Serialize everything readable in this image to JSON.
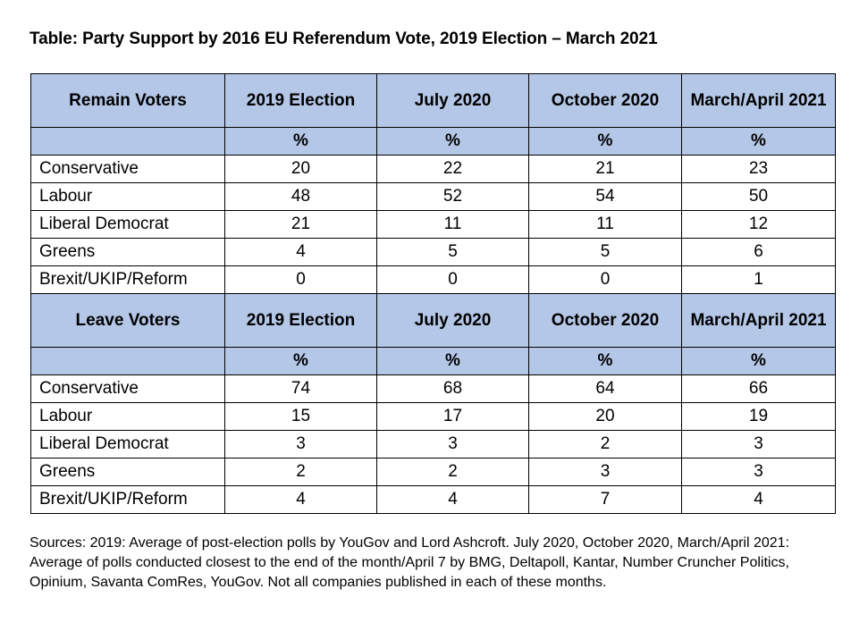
{
  "title": "Table: Party Support by 2016 EU Referendum Vote, 2019 Election – March 2021",
  "sections": [
    {
      "group_label": "Remain Voters",
      "columns": [
        "2019 Election",
        "July 2020",
        "October 2020",
        "March/April 2021"
      ],
      "unit_row": [
        "%",
        "%",
        "%",
        "%"
      ],
      "rows": [
        {
          "party": "Conservative",
          "values": [
            "20",
            "22",
            "21",
            "23"
          ]
        },
        {
          "party": "Labour",
          "values": [
            "48",
            "52",
            "54",
            "50"
          ]
        },
        {
          "party": "Liberal Democrat",
          "values": [
            "21",
            "11",
            "11",
            "12"
          ]
        },
        {
          "party": "Greens",
          "values": [
            "4",
            "5",
            "5",
            "6"
          ]
        },
        {
          "party": "Brexit/UKIP/Reform",
          "values": [
            "0",
            "0",
            "0",
            "1"
          ]
        }
      ]
    },
    {
      "group_label": "Leave Voters",
      "columns": [
        "2019 Election",
        "July 2020",
        "October 2020",
        "March/April 2021"
      ],
      "unit_row": [
        "%",
        "%",
        "%",
        "%"
      ],
      "rows": [
        {
          "party": "Conservative",
          "values": [
            "74",
            "68",
            "64",
            "66"
          ]
        },
        {
          "party": "Labour",
          "values": [
            "15",
            "17",
            "20",
            "19"
          ]
        },
        {
          "party": "Liberal Democrat",
          "values": [
            "3",
            "3",
            "2",
            "3"
          ]
        },
        {
          "party": "Greens",
          "values": [
            "2",
            "2",
            "3",
            "3"
          ]
        },
        {
          "party": "Brexit/UKIP/Reform",
          "values": [
            "4",
            "4",
            "7",
            "4"
          ]
        }
      ]
    }
  ],
  "sources": "Sources: 2019: Average of post-election polls by YouGov and Lord Ashcroft. July 2020, October 2020, March/April 2021: Average of polls conducted closest to the end of the month/April 7 by BMG, Deltapoll, Kantar, Number Cruncher Politics, Opinium, Savanta ComRes, YouGov. Not all companies published in each of these months.",
  "colors": {
    "header_fill": "#b4c7e7",
    "border": "#000000"
  }
}
